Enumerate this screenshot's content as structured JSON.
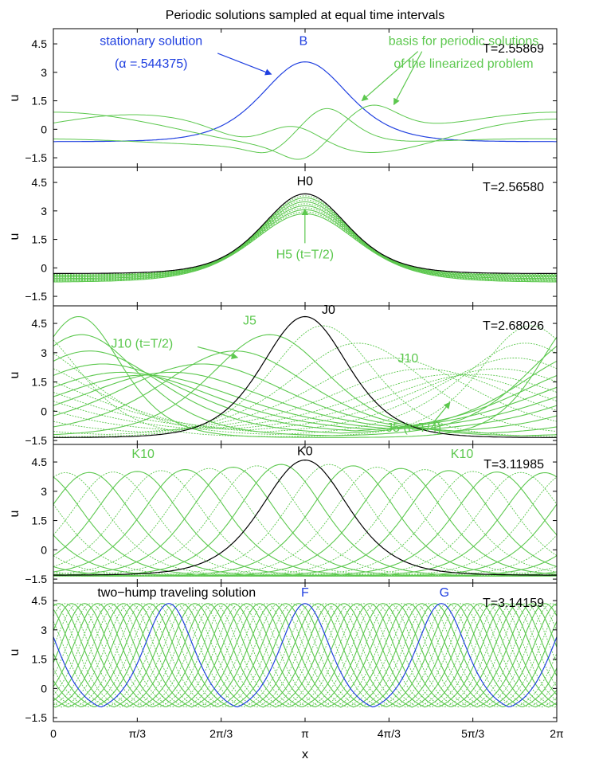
{
  "title": "Periodic solutions sampled at equal time intervals",
  "colors": {
    "green": "#5cc84e",
    "blue": "#2040e0",
    "black": "#000000"
  },
  "xaxis": {
    "label": "x",
    "ticks": [
      {
        "v": 0,
        "label": "0"
      },
      {
        "v": 1.0471976,
        "label": "π/3"
      },
      {
        "v": 2.0943951,
        "label": "2π/3"
      },
      {
        "v": 3.1415927,
        "label": "π"
      },
      {
        "v": 4.1887902,
        "label": "4π/3"
      },
      {
        "v": 5.2359878,
        "label": "5π/3"
      },
      {
        "v": 6.2831853,
        "label": "2π"
      }
    ]
  },
  "chart_data": [
    {
      "type": "line",
      "period_label": "T=2.55869",
      "ylabel": "u",
      "ylim": [
        -2.0,
        5.3
      ],
      "yticks": [
        -1.5,
        0,
        1.5,
        3,
        4.5
      ],
      "ytick_labels": [
        "−1.5",
        "0",
        "1.5",
        "3",
        "4.5"
      ],
      "series": [
        {
          "name": "stationary solution",
          "color": "blue",
          "kind": "sech",
          "amp": 4.2,
          "width": 0.72,
          "base": -0.65,
          "center": 3.14159,
          "shifts": [
            0
          ]
        },
        {
          "name": "basis 1",
          "color": "green",
          "kind": "basis",
          "variant": 1
        },
        {
          "name": "basis 2",
          "color": "green",
          "kind": "basis",
          "variant": 2
        },
        {
          "name": "basis 3",
          "color": "green",
          "kind": "basis",
          "variant": 3
        }
      ],
      "annotations": [
        {
          "text": "stationary solution",
          "color": "blue",
          "x": 1.22,
          "y": 4.45,
          "anchor": "middle"
        },
        {
          "text": "(α =.544375)",
          "color": "blue",
          "x": 1.22,
          "y": 3.25,
          "anchor": "middle"
        },
        {
          "text": "B",
          "color": "blue",
          "x": 3.12,
          "y": 4.45,
          "anchor": "middle"
        },
        {
          "text": "basis for periodic solutions",
          "color": "green",
          "x": 5.12,
          "y": 4.45,
          "anchor": "middle"
        },
        {
          "text": "of the linearized problem",
          "color": "green",
          "x": 5.12,
          "y": 3.25,
          "anchor": "middle"
        }
      ],
      "arrows": [
        {
          "color": "blue",
          "x1": 2.05,
          "y1": 4.0,
          "x2": 2.72,
          "y2": 2.9
        },
        {
          "color": "green",
          "x1": 4.55,
          "y1": 4.1,
          "x2": 3.85,
          "y2": 1.5
        },
        {
          "color": "green",
          "x1": 4.6,
          "y1": 4.1,
          "x2": 4.25,
          "y2": 1.3
        }
      ]
    },
    {
      "type": "line",
      "period_label": "T=2.56580",
      "ylabel": "u",
      "ylim": [
        -2.0,
        5.3
      ],
      "yticks": [
        -1.5,
        0,
        1.5,
        3,
        4.5
      ],
      "ytick_labels": [
        "−1.5",
        "0",
        "1.5",
        "3",
        "4.5"
      ],
      "series": [
        {
          "name": "H family",
          "color": "green",
          "kind": "breath",
          "n": 11,
          "amp0": 4.2,
          "amp1": 3.6,
          "w0": 0.72,
          "w1": 0.88,
          "b0": -0.3,
          "b1": -0.75
        },
        {
          "name": "H0",
          "color": "black",
          "kind": "sech",
          "amp": 4.2,
          "width": 0.72,
          "base": -0.3,
          "center": 3.14159,
          "shifts": [
            0
          ]
        }
      ],
      "annotations": [
        {
          "text": "H0",
          "color": "black",
          "x": 3.14,
          "y": 4.35,
          "anchor": "middle"
        },
        {
          "text": "H5 (t=T/2)",
          "color": "green",
          "x": 3.14,
          "y": 0.5,
          "anchor": "middle"
        }
      ],
      "arrows": [
        {
          "color": "green",
          "x1": 3.14,
          "y1": 1.3,
          "x2": 3.14,
          "y2": 3.1
        }
      ]
    },
    {
      "type": "line",
      "period_label": "T=2.68026",
      "ylabel": "u",
      "ylim": [
        -1.7,
        5.4
      ],
      "yticks": [
        -1.5,
        0,
        1.5,
        3,
        4.5
      ],
      "ytick_labels": [
        "−1.5",
        "0",
        "1.5",
        "3",
        "4.5"
      ],
      "series": [
        {
          "name": "J family",
          "color": "green",
          "kind": "rock",
          "n": 21
        },
        {
          "name": "J0",
          "color": "black",
          "kind": "sech",
          "amp": 6.2,
          "width": 0.72,
          "base": -1.35,
          "center": 3.14159,
          "shifts": [
            0
          ]
        }
      ],
      "annotations": [
        {
          "text": "J0",
          "color": "black",
          "x": 3.35,
          "y": 5.0,
          "anchor": "start"
        },
        {
          "text": "J5",
          "color": "green",
          "x": 2.45,
          "y": 4.45,
          "anchor": "middle"
        },
        {
          "text": "J10 (t=T/2)",
          "color": "green",
          "x": 0.72,
          "y": 3.25,
          "anchor": "start"
        },
        {
          "text": "J10",
          "color": "green",
          "x": 4.3,
          "y": 2.5,
          "anchor": "start"
        },
        {
          "text": "J5 (t=T/4)",
          "color": "green",
          "x": 4.5,
          "y": -1.05,
          "anchor": "middle"
        }
      ],
      "arrows": [
        {
          "color": "green",
          "x1": 1.8,
          "y1": 3.3,
          "x2": 2.3,
          "y2": 2.75
        },
        {
          "color": "green",
          "x1": 4.75,
          "y1": -0.55,
          "x2": 4.95,
          "y2": 0.45
        }
      ]
    },
    {
      "type": "line",
      "period_label": "T=3.11985",
      "ylabel": "u",
      "ylim": [
        -1.7,
        5.4
      ],
      "yticks": [
        -1.5,
        0,
        1.5,
        3,
        4.5
      ],
      "ytick_labels": [
        "−1.5",
        "0",
        "1.5",
        "3",
        "4.5"
      ],
      "series": [
        {
          "name": "K family",
          "color": "green",
          "kind": "travel",
          "n": 21,
          "amp": 5.8,
          "width": 0.72,
          "base": -1.35,
          "ampdip": 0.5
        },
        {
          "name": "K0",
          "color": "black",
          "kind": "sech",
          "amp": 5.9,
          "width": 0.72,
          "base": -1.3,
          "center": 3.14159,
          "shifts": [
            0,
            6.28319,
            -6.28319
          ]
        }
      ],
      "annotations": [
        {
          "text": "K0",
          "color": "black",
          "x": 3.14,
          "y": 4.85,
          "anchor": "middle"
        },
        {
          "text": "K10",
          "color": "green",
          "x": 1.12,
          "y": 4.7,
          "anchor": "middle"
        },
        {
          "text": "K10",
          "color": "green",
          "x": 5.1,
          "y": 4.7,
          "anchor": "middle"
        }
      ],
      "arrows": []
    },
    {
      "type": "line",
      "period_label": "T=3.14159",
      "ylabel": "u",
      "ylim": [
        -1.7,
        5.4
      ],
      "yticks": [
        -1.5,
        0,
        1.5,
        3,
        4.5
      ],
      "ytick_labels": [
        "−1.5",
        "0",
        "1.5",
        "3",
        "4.5"
      ],
      "series": [
        {
          "name": "two-hump family",
          "color": "green",
          "kind": "travel2",
          "n": 21,
          "amp": 5.7,
          "width": 0.42,
          "base": -1.35
        },
        {
          "name": "F/G",
          "color": "blue",
          "kind": "sech",
          "amp": 5.7,
          "width": 0.42,
          "base": -1.35,
          "center": 3.14159,
          "shifts": [
            0,
            -1.7,
            1.7,
            -3.4,
            3.4,
            -5.1,
            5.1
          ]
        }
      ],
      "annotations": [
        {
          "text": "two−hump traveling solution",
          "color": "black",
          "x": 0.55,
          "y": 4.7,
          "anchor": "start"
        },
        {
          "text": "F",
          "color": "blue",
          "x": 3.14,
          "y": 4.7,
          "anchor": "middle"
        },
        {
          "text": "G",
          "color": "blue",
          "x": 4.88,
          "y": 4.7,
          "anchor": "middle"
        }
      ],
      "arrows": []
    }
  ]
}
